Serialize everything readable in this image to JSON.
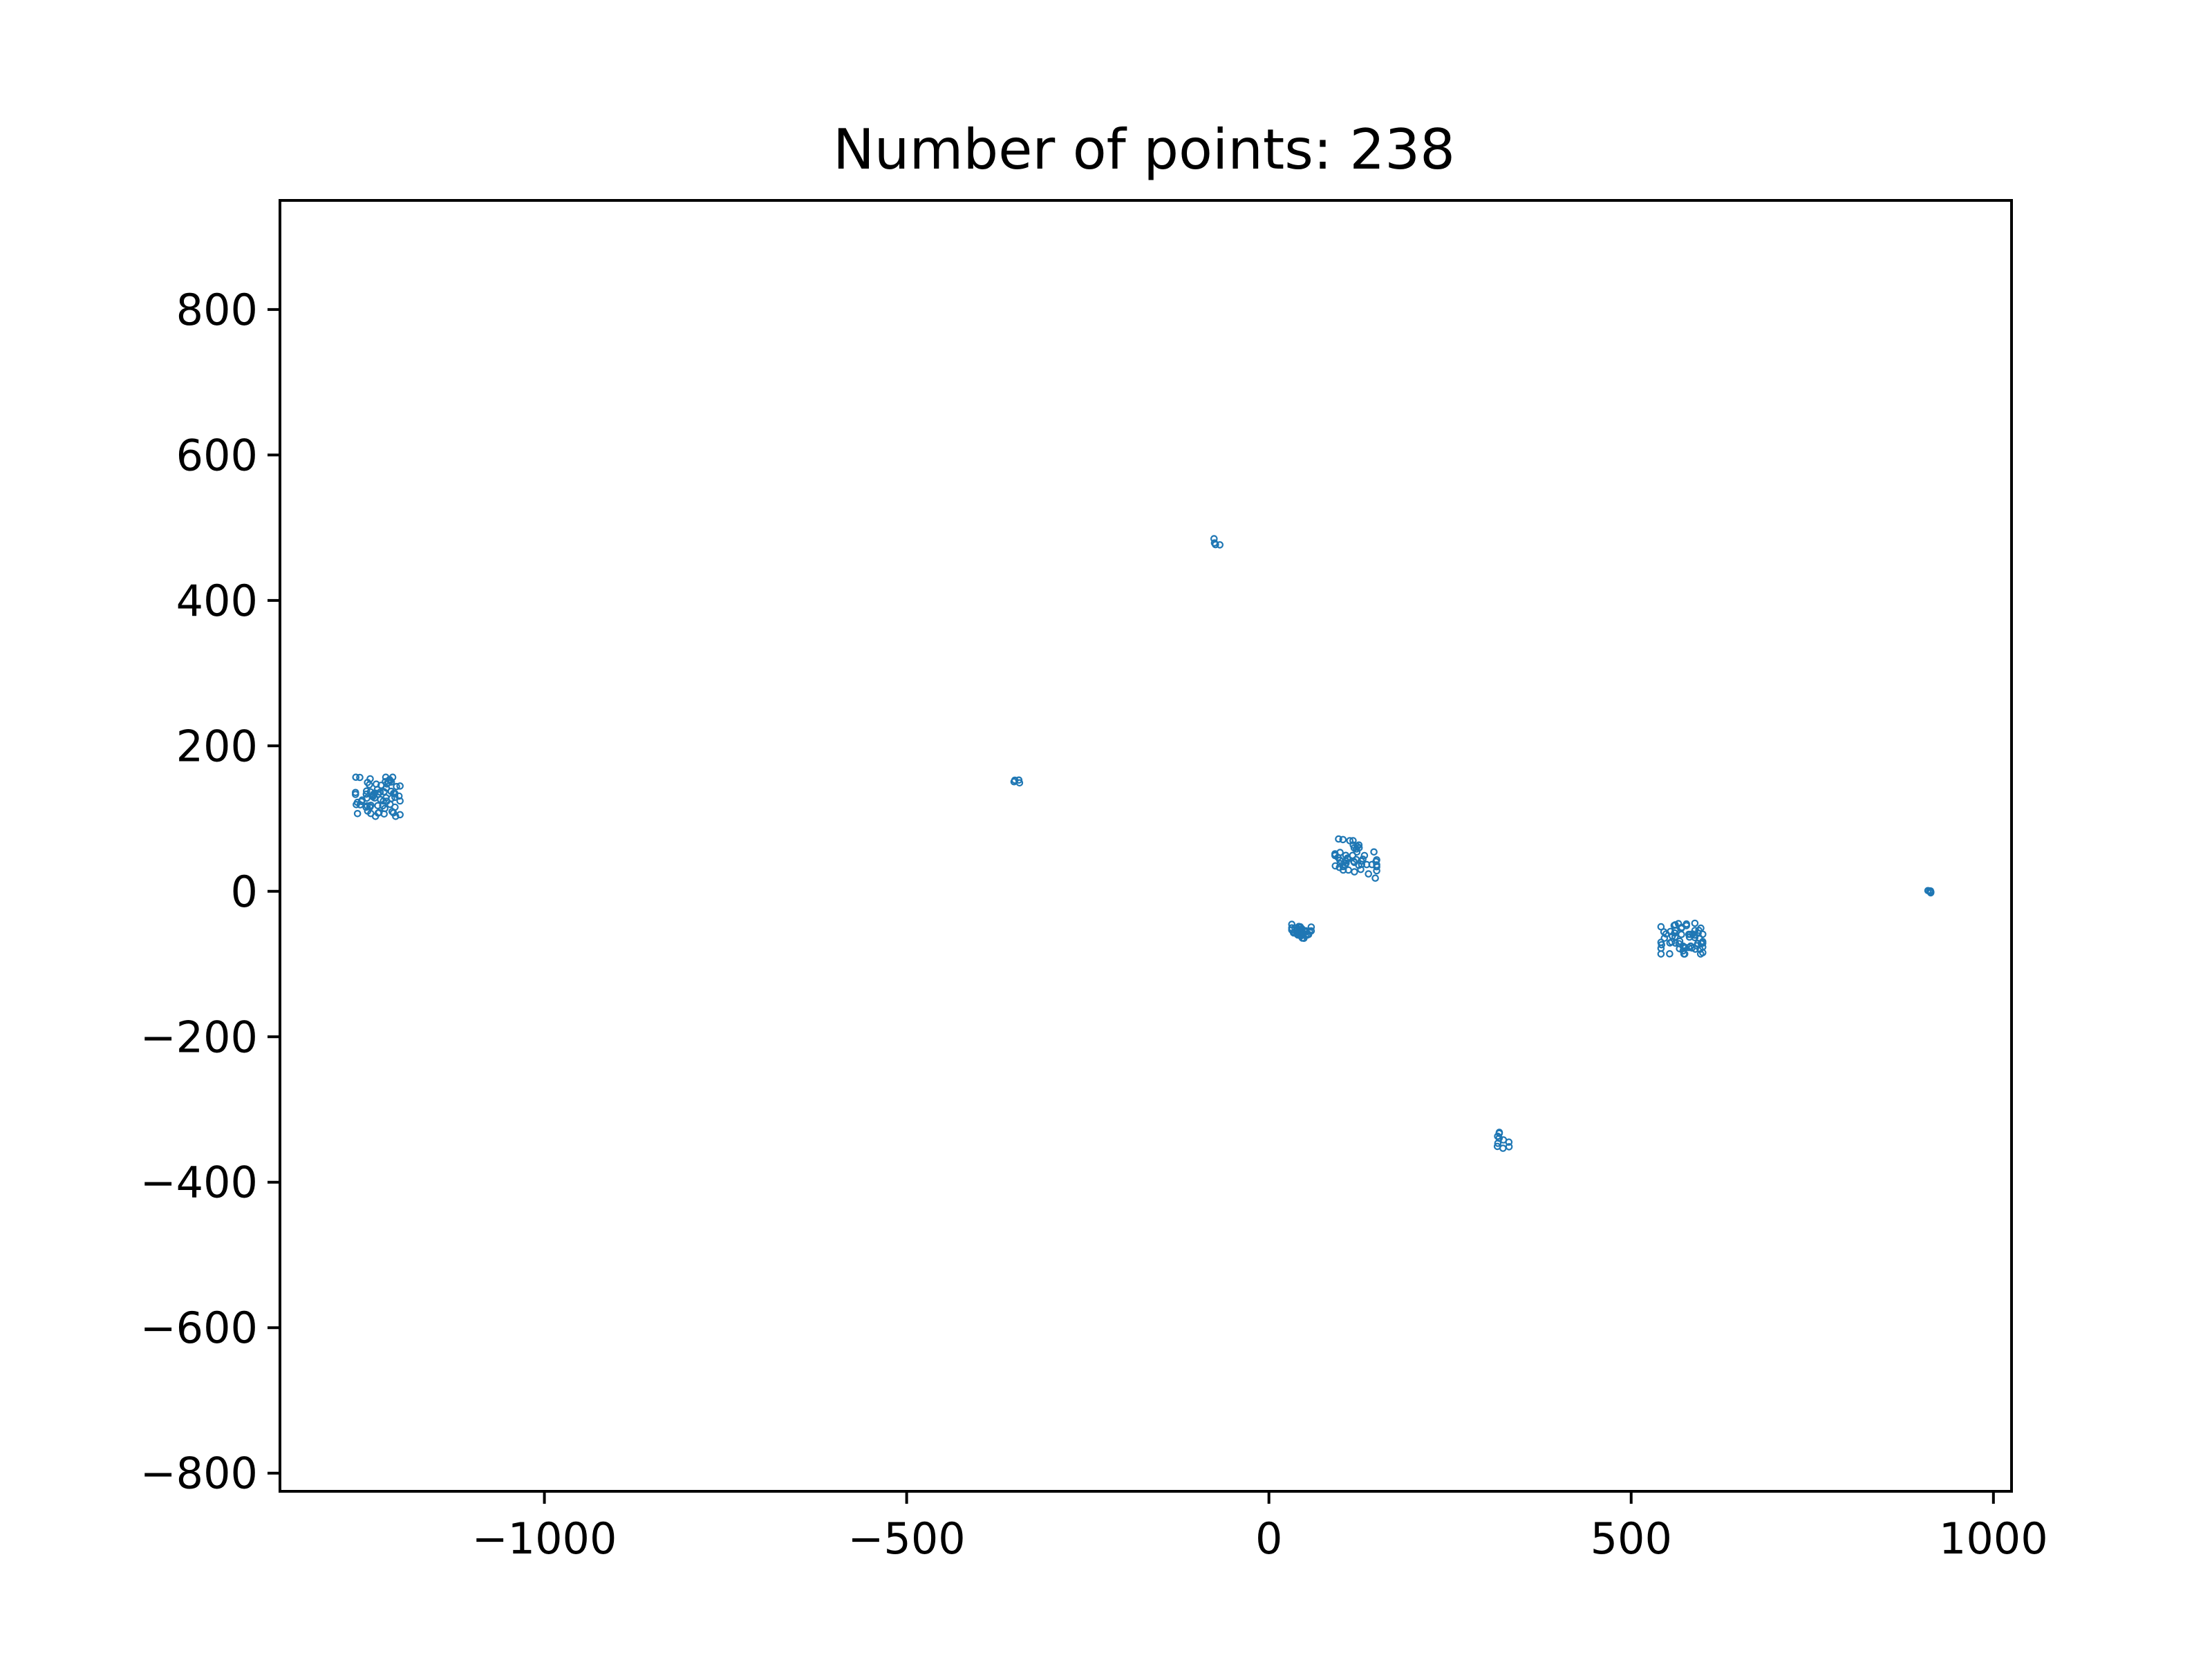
{
  "chart_data": {
    "type": "scatter",
    "title": "Number of points: 238",
    "xlabel": "",
    "ylabel": "",
    "xlim": [
      -1365,
      1025
    ],
    "ylim": [
      -825,
      950
    ],
    "xticks": [
      -1000,
      -500,
      0,
      500,
      1000
    ],
    "yticks": [
      -800,
      -600,
      -400,
      -200,
      0,
      200,
      400,
      600,
      800
    ],
    "xtick_labels": [
      "−1000",
      "−500",
      "0",
      "500",
      "1000"
    ],
    "ytick_labels": [
      "−800",
      "−600",
      "−400",
      "−200",
      "0",
      "200",
      "400",
      "600",
      "800"
    ],
    "grid": false,
    "legend": false,
    "marker_color": "#1f77b4",
    "marker_style": "hollow-circle",
    "clusters": [
      {
        "center": [
          -1230,
          130
        ],
        "spread": [
          32,
          28
        ],
        "count": 70
      },
      {
        "center": [
          -70,
          480
        ],
        "spread": [
          6,
          5
        ],
        "count": 4
      },
      {
        "center": [
          -350,
          152
        ],
        "spread": [
          6,
          3
        ],
        "count": 4
      },
      {
        "center": [
          120,
          45
        ],
        "spread": [
          30,
          28
        ],
        "count": 50
      },
      {
        "center": [
          45,
          -55
        ],
        "spread": [
          14,
          10
        ],
        "count": 35
      },
      {
        "center": [
          570,
          -65
        ],
        "spread": [
          30,
          22
        ],
        "count": 60
      },
      {
        "center": [
          912,
          -2
        ],
        "spread": [
          6,
          6
        ],
        "count": 5
      },
      {
        "center": [
          322,
          -343
        ],
        "spread": [
          12,
          12
        ],
        "count": 10
      }
    ],
    "total_points": 238
  }
}
